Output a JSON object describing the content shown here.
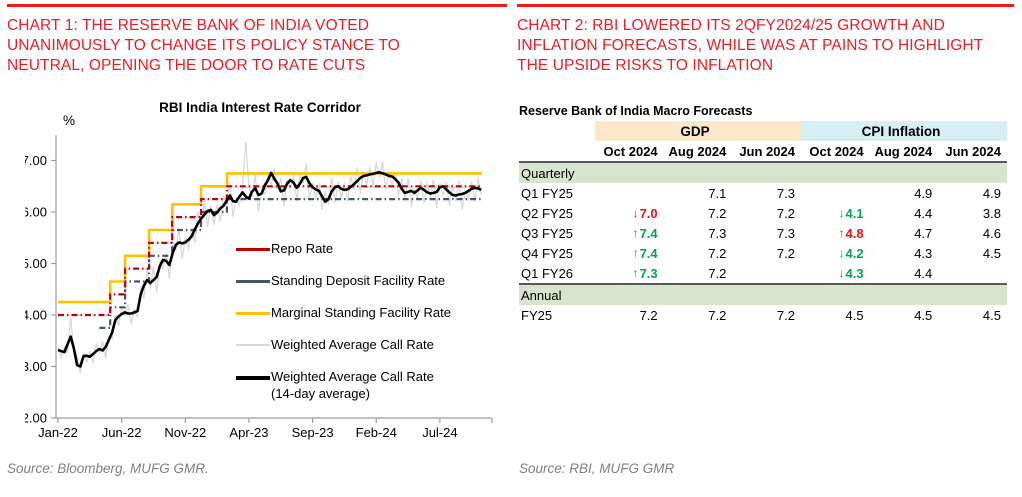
{
  "colors": {
    "accent_red": "#ED1C24",
    "rule_red": "#F21B1B",
    "axis_gray": "#9c9c9c",
    "divider_gray": "#595959",
    "source_gray": "#7f7f7f",
    "gdp_fill": "#FBE8C8",
    "cpi_fill": "#D7EFF4",
    "banner_fill": "#D7E4CE",
    "up_green": "#00A550",
    "down_red": "#EE1111"
  },
  "left_panel": {
    "title": "CHART 1: THE RESERVE BANK OF INDIA VOTED UNANIMOUSLY TO CHANGE ITS POLICY STANCE TO NEUTRAL, OPENING THE DOOR TO RATE CUTS",
    "source": "Source: Bloomberg, MUFG GMR.",
    "legend": [
      {
        "label": "Repo Rate",
        "color": "#C00000",
        "thickness": 3
      },
      {
        "label": "Standing Deposit Facility Rate",
        "color": "#44546A",
        "thickness": 3
      },
      {
        "label": "Marginal Standing Facility Rate",
        "color": "#FFC000",
        "thickness": 3
      },
      {
        "label": "Weighted Average Call Rate",
        "color": "#D9D9D9",
        "thickness": 2
      },
      {
        "label": "Weighted Average Call Rate",
        "label2": "(14-day average)",
        "color": "#000000",
        "thickness": 3.5
      }
    ]
  },
  "right_panel": {
    "title": "CHART 2: RBI LOWERED ITS 2QFY2024/25 GROWTH AND INFLATION FORECASTS, WHILE WAS AT PAINS TO HIGHLIGHT THE UPSIDE RISKS TO INFLATION",
    "source": "Source: RBI, MUFG GMR",
    "table": {
      "title": "Reserve Bank of India Macro Forecasts",
      "group_headers": [
        {
          "label": "GDP",
          "span": 3,
          "fill": "#FBE8C8"
        },
        {
          "label": "CPI Inflation",
          "span": 3,
          "fill": "#D7EFF4"
        }
      ],
      "columns": [
        "Oct 2024",
        "Aug 2024",
        "Jun 2024",
        "Oct 2024",
        "Aug 2024",
        "Jun 2024"
      ],
      "rows": [
        {
          "type": "banner",
          "label": "Quarterly"
        },
        {
          "type": "data",
          "label": "Q1 FY25",
          "cells": [
            "",
            "7.1",
            "7.3",
            "",
            "4.9",
            "4.9"
          ]
        },
        {
          "type": "data",
          "label": "Q2 FY25",
          "cells": [
            {
              "v": "7.0",
              "a": "↓",
              "c": "red"
            },
            "7.2",
            "7.2",
            {
              "v": "4.1",
              "a": "↓",
              "c": "green"
            },
            "4.4",
            "3.8"
          ]
        },
        {
          "type": "data",
          "label": "Q3 FY25",
          "cells": [
            {
              "v": "7.4",
              "a": "↑",
              "c": "green"
            },
            "7.3",
            "7.3",
            {
              "v": "4.8",
              "a": "↑",
              "c": "red"
            },
            "4.7",
            "4.6"
          ]
        },
        {
          "type": "data",
          "label": "Q4 FY25",
          "cells": [
            {
              "v": "7.4",
              "a": "↑",
              "c": "green"
            },
            "7.2",
            "7.2",
            {
              "v": "4.2",
              "a": "↓",
              "c": "green"
            },
            "4.3",
            "4.5"
          ]
        },
        {
          "type": "data",
          "label": "Q1 FY26",
          "cells": [
            {
              "v": "7.3",
              "a": "↑",
              "c": "green"
            },
            "7.2",
            "",
            {
              "v": "4.3",
              "a": "↓",
              "c": "green"
            },
            "4.4",
            ""
          ]
        },
        {
          "type": "banner",
          "label": "Annual"
        },
        {
          "type": "data",
          "label": "FY25",
          "cells": [
            "7.2",
            "7.2",
            "7.2",
            "4.5",
            "4.5",
            "4.5"
          ]
        }
      ]
    }
  },
  "chart_data": {
    "type": "line",
    "title": "RBI India Interest Rate Corridor",
    "ylabel": "%",
    "xlabel": "",
    "x_unit": "months since Jan-2022",
    "ylim": [
      2.0,
      7.4
    ],
    "xlim": [
      0,
      33.5
    ],
    "grid": false,
    "legend_position": "inside lower-right",
    "yticks": [
      {
        "v": 2,
        "label": "2.00"
      },
      {
        "v": 3,
        "label": "3.00"
      },
      {
        "v": 4,
        "label": "4.00"
      },
      {
        "v": 5,
        "label": "5.00"
      },
      {
        "v": 6,
        "label": "6.00"
      },
      {
        "v": 7,
        "label": "7.00"
      }
    ],
    "xticks": [
      {
        "m": 0,
        "label": "Jan-22"
      },
      {
        "m": 5,
        "label": "Jun-22"
      },
      {
        "m": 10,
        "label": "Nov-22"
      },
      {
        "m": 15,
        "label": "Apr-23"
      },
      {
        "m": 20,
        "label": "Sep-23"
      },
      {
        "m": 25,
        "label": "Feb-24"
      },
      {
        "m": 30,
        "label": "Jul-24"
      }
    ],
    "series": [
      {
        "name": "Weighted Average Call Rate",
        "color": "#D9D9D9",
        "width": 1.3,
        "x_start": 0,
        "x_step": 0.25,
        "values": [
          3.38,
          3.17,
          3.38,
          3.26,
          3.95,
          3.28,
          3.21,
          2.88,
          3.26,
          3.08,
          3.29,
          3.07,
          3.44,
          3.27,
          3.49,
          3.17,
          3.58,
          3.53,
          4.0,
          3.8,
          4.16,
          3.98,
          4.21,
          3.82,
          4.11,
          3.95,
          4.54,
          4.32,
          4.88,
          4.52,
          4.94,
          4.44,
          5.03,
          4.89,
          5.19,
          4.72,
          5.4,
          5.26,
          5.67,
          5.09,
          5.49,
          5.28,
          5.67,
          5.41,
          5.98,
          5.77,
          6.21,
          5.72,
          6.12,
          5.76,
          6.13,
          5.82,
          6.32,
          6.12,
          6.58,
          5.91,
          6.28,
          6.12,
          6.52,
          7.35,
          6.46,
          6.3,
          6.72,
          6.03,
          6.44,
          6.34,
          6.76,
          6.51,
          6.84,
          6.45,
          6.66,
          6.12,
          6.63,
          6.44,
          6.71,
          6.22,
          6.75,
          6.56,
          6.94,
          6.26,
          6.56,
          6.26,
          6.55,
          6.05,
          6.4,
          6.15,
          6.66,
          6.18,
          6.58,
          6.27,
          6.57,
          6.19,
          6.69,
          6.44,
          6.86,
          6.36,
          6.78,
          6.53,
          6.87,
          6.49,
          6.96,
          6.67,
          6.98,
          6.43,
          6.78,
          6.51,
          6.78,
          6.32,
          6.65,
          6.27,
          6.65,
          6.11,
          6.45,
          6.24,
          6.61,
          6.18,
          6.58,
          6.26,
          6.63,
          6.09,
          6.56,
          6.32,
          6.58,
          6.13,
          6.53,
          6.22,
          6.6,
          6.05,
          6.45,
          6.23,
          6.59,
          6.22,
          6.66,
          6.33
        ]
      },
      {
        "name": "Marginal Standing Facility Rate",
        "color": "#FFC000",
        "width": 2.6,
        "points": [
          [
            0,
            4.25
          ],
          [
            4.1,
            4.25
          ],
          [
            4.1,
            4.65
          ],
          [
            5.27,
            4.65
          ],
          [
            5.27,
            5.15
          ],
          [
            7.16,
            5.15
          ],
          [
            7.16,
            5.65
          ],
          [
            8.97,
            5.65
          ],
          [
            8.97,
            6.15
          ],
          [
            11.23,
            6.15
          ],
          [
            11.23,
            6.5
          ],
          [
            13.27,
            6.5
          ],
          [
            13.27,
            6.75
          ],
          [
            33.3,
            6.75
          ]
        ]
      },
      {
        "name": "Standing Deposit Facility Rate",
        "color": "#44546A",
        "width": 2.2,
        "dash": "6 3 1.5 3",
        "points": [
          [
            3.25,
            3.75
          ],
          [
            4.1,
            3.75
          ],
          [
            4.1,
            4.15
          ],
          [
            5.27,
            4.15
          ],
          [
            5.27,
            4.65
          ],
          [
            7.16,
            4.65
          ],
          [
            7.16,
            5.15
          ],
          [
            8.97,
            5.15
          ],
          [
            8.97,
            5.65
          ],
          [
            11.23,
            5.65
          ],
          [
            11.23,
            6.0
          ],
          [
            13.27,
            6.0
          ],
          [
            13.27,
            6.25
          ],
          [
            33.3,
            6.25
          ]
        ]
      },
      {
        "name": "Repo Rate",
        "color": "#C00000",
        "width": 2.2,
        "dash": "6 3 1.5 3",
        "points": [
          [
            0,
            4.0
          ],
          [
            4.1,
            4.0
          ],
          [
            4.1,
            4.4
          ],
          [
            5.27,
            4.4
          ],
          [
            5.27,
            4.9
          ],
          [
            7.16,
            4.9
          ],
          [
            7.16,
            5.4
          ],
          [
            8.97,
            5.4
          ],
          [
            8.97,
            5.9
          ],
          [
            11.23,
            5.9
          ],
          [
            11.23,
            6.25
          ],
          [
            13.27,
            6.25
          ],
          [
            13.27,
            6.5
          ],
          [
            33.3,
            6.5
          ]
        ]
      },
      {
        "name": "Weighted Average Call Rate (14-day average)",
        "color": "#000000",
        "width": 2.6,
        "x_start": 0,
        "x_step": 0.25,
        "values": [
          3.32,
          3.3,
          3.28,
          3.43,
          3.58,
          3.35,
          3.03,
          3.0,
          3.2,
          3.21,
          3.19,
          3.24,
          3.3,
          3.34,
          3.31,
          3.38,
          3.52,
          3.66,
          3.9,
          3.97,
          4.02,
          4.05,
          4.03,
          4.03,
          4.05,
          4.08,
          4.4,
          4.57,
          4.68,
          4.62,
          4.68,
          4.74,
          4.95,
          5.07,
          5.05,
          4.97,
          5.2,
          5.36,
          5.41,
          5.39,
          5.41,
          5.46,
          5.53,
          5.66,
          5.78,
          5.87,
          5.95,
          6.02,
          6.04,
          5.94,
          5.99,
          6.07,
          6.12,
          6.22,
          6.32,
          6.21,
          6.2,
          6.3,
          6.38,
          6.3,
          6.26,
          6.4,
          6.46,
          6.33,
          6.36,
          6.52,
          6.62,
          6.76,
          6.64,
          6.55,
          6.4,
          6.42,
          6.55,
          6.62,
          6.57,
          6.47,
          6.55,
          6.66,
          6.68,
          6.56,
          6.48,
          6.44,
          6.41,
          6.3,
          6.2,
          6.25,
          6.4,
          6.48,
          6.5,
          6.45,
          6.43,
          6.44,
          6.49,
          6.54,
          6.6,
          6.66,
          6.7,
          6.71,
          6.73,
          6.74,
          6.76,
          6.77,
          6.75,
          6.73,
          6.7,
          6.69,
          6.64,
          6.57,
          6.45,
          6.37,
          6.39,
          6.41,
          6.37,
          6.42,
          6.47,
          6.43,
          6.38,
          6.36,
          6.37,
          6.39,
          6.48,
          6.5,
          6.44,
          6.38,
          6.33,
          6.32,
          6.34,
          6.35,
          6.37,
          6.41,
          6.45,
          6.47,
          6.46,
          6.43
        ]
      }
    ]
  }
}
